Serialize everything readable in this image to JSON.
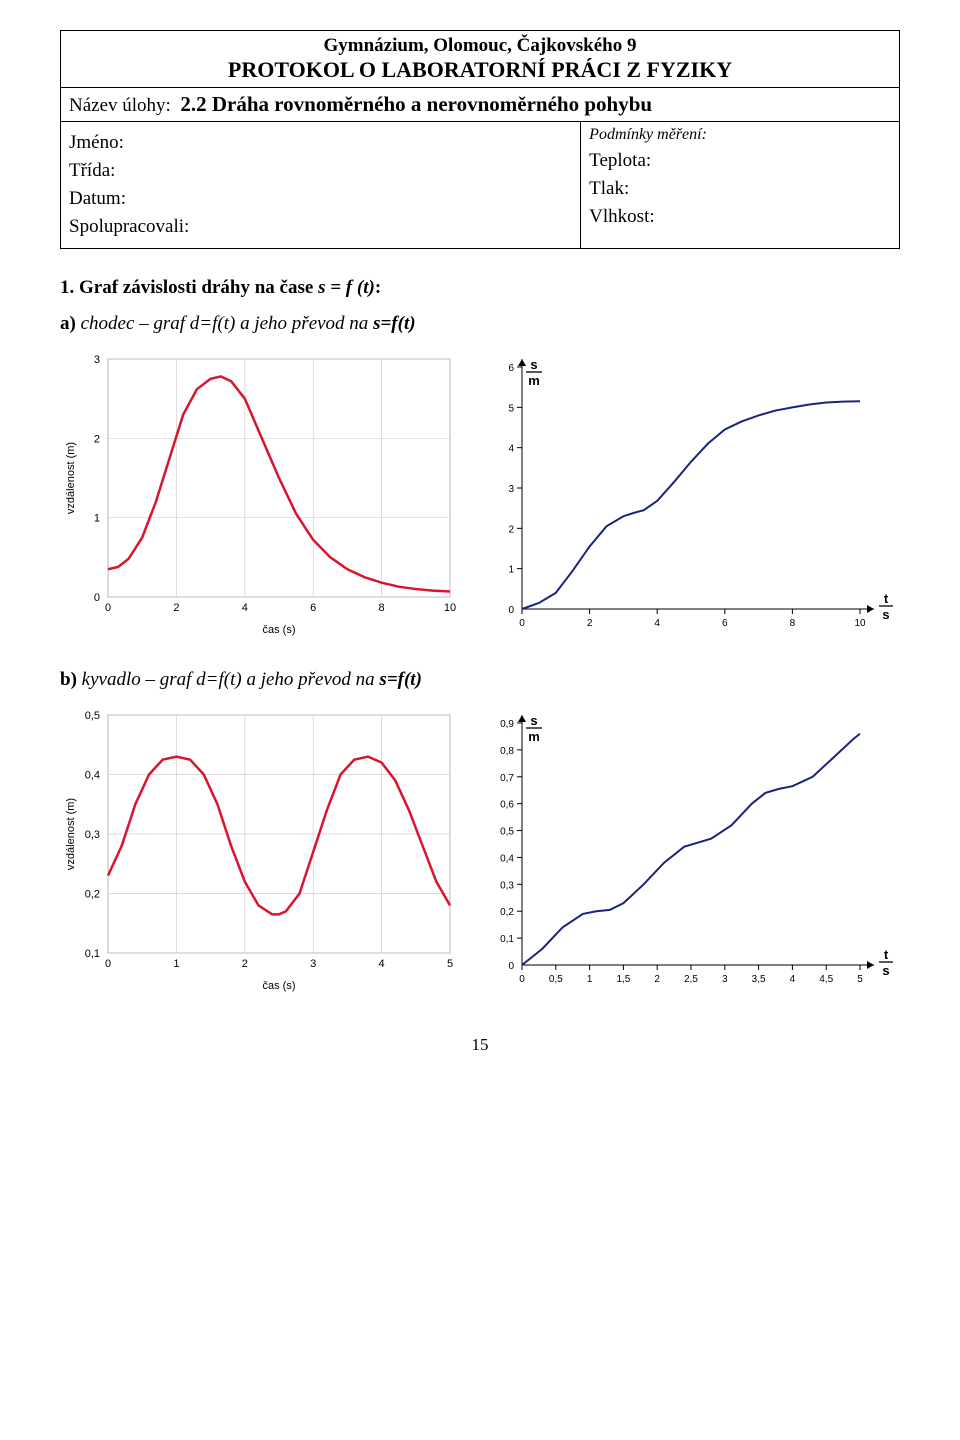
{
  "header": {
    "school": "Gymnázium, Olomouc, Čajkovského 9",
    "protocol": "PROTOKOL O LABORATORNÍ PRÁCI Z FYZIKY",
    "task_label": "Název úlohy:",
    "task_title": "2.2 Dráha rovnoměrného a nerovnoměrného pohybu",
    "left_fields": [
      "Jméno:",
      "Třída:",
      "Datum:",
      "Spolupracovali:"
    ],
    "cond_title": "Podmínky měření:",
    "right_fields": [
      "Teplota:",
      "Tlak:",
      "Vlhkost:"
    ]
  },
  "section1": {
    "num": "1.",
    "title_pre": "Graf závislosti dráhy na čase ",
    "fn": "s = f (t)",
    "title_post": ":"
  },
  "sub_a": {
    "lead": "a)",
    "body_pre": " chodec – graf  d=f(t) a jeho převod na ",
    "var": "s=f(t)"
  },
  "sub_b": {
    "lead": "b)",
    "body_pre": " kyvadlo – graf  d=f(t) a jeho převod na ",
    "var": "s=f(t)"
  },
  "chart_a_left": {
    "type": "line",
    "xlabel": "čas (s)",
    "ylabel": "vzdálenost (m)",
    "xlim": [
      0,
      10
    ],
    "xtick_step": 2,
    "ylim": [
      0,
      3
    ],
    "ytick_step": 1,
    "line_color": "#d8152e",
    "bg": "#ffffff",
    "grid_color": "#d0d0d0",
    "data": [
      [
        0,
        0.35
      ],
      [
        0.3,
        0.38
      ],
      [
        0.6,
        0.48
      ],
      [
        1,
        0.75
      ],
      [
        1.4,
        1.2
      ],
      [
        1.8,
        1.75
      ],
      [
        2.2,
        2.3
      ],
      [
        2.6,
        2.62
      ],
      [
        3,
        2.75
      ],
      [
        3.3,
        2.78
      ],
      [
        3.6,
        2.72
      ],
      [
        4,
        2.5
      ],
      [
        4.5,
        2.0
      ],
      [
        5,
        1.5
      ],
      [
        5.5,
        1.05
      ],
      [
        6,
        0.72
      ],
      [
        6.5,
        0.5
      ],
      [
        7,
        0.35
      ],
      [
        7.5,
        0.25
      ],
      [
        8,
        0.18
      ],
      [
        8.5,
        0.13
      ],
      [
        9,
        0.1
      ],
      [
        9.5,
        0.08
      ],
      [
        10,
        0.07
      ]
    ]
  },
  "chart_a_right": {
    "type": "line",
    "yunit_top": "s",
    "yunit_bot": "m",
    "xunit_top": "t",
    "xunit_bot": "s",
    "xlim": [
      0,
      10
    ],
    "xtick_step": 2,
    "ylim": [
      0,
      6
    ],
    "ytick_step": 1,
    "line_color": "#1a237e",
    "bg": "#ffffff",
    "data": [
      [
        0,
        0
      ],
      [
        0.5,
        0.15
      ],
      [
        1,
        0.4
      ],
      [
        1.5,
        0.95
      ],
      [
        2,
        1.55
      ],
      [
        2.5,
        2.05
      ],
      [
        3,
        2.3
      ],
      [
        3.3,
        2.38
      ],
      [
        3.6,
        2.45
      ],
      [
        4,
        2.68
      ],
      [
        4.5,
        3.15
      ],
      [
        5,
        3.65
      ],
      [
        5.5,
        4.1
      ],
      [
        6,
        4.45
      ],
      [
        6.5,
        4.65
      ],
      [
        7,
        4.8
      ],
      [
        7.5,
        4.92
      ],
      [
        8,
        5.0
      ],
      [
        8.5,
        5.07
      ],
      [
        9,
        5.12
      ],
      [
        9.5,
        5.14
      ],
      [
        10,
        5.15
      ]
    ]
  },
  "chart_b_left": {
    "type": "line",
    "xlabel": "čas (s)",
    "ylabel": "vzdálenost (m)",
    "xlim": [
      0,
      5
    ],
    "xtick_step": 1,
    "ylim": [
      0.1,
      0.5
    ],
    "ytick_step": 0.1,
    "line_color": "#d8152e",
    "bg": "#ffffff",
    "grid_color": "#d0d0d0",
    "data": [
      [
        0,
        0.23
      ],
      [
        0.2,
        0.28
      ],
      [
        0.4,
        0.35
      ],
      [
        0.6,
        0.4
      ],
      [
        0.8,
        0.425
      ],
      [
        1.0,
        0.43
      ],
      [
        1.2,
        0.425
      ],
      [
        1.4,
        0.4
      ],
      [
        1.6,
        0.35
      ],
      [
        1.8,
        0.28
      ],
      [
        2.0,
        0.22
      ],
      [
        2.2,
        0.18
      ],
      [
        2.4,
        0.165
      ],
      [
        2.5,
        0.165
      ],
      [
        2.6,
        0.17
      ],
      [
        2.8,
        0.2
      ],
      [
        3.0,
        0.27
      ],
      [
        3.2,
        0.34
      ],
      [
        3.4,
        0.4
      ],
      [
        3.6,
        0.425
      ],
      [
        3.8,
        0.43
      ],
      [
        4.0,
        0.42
      ],
      [
        4.2,
        0.39
      ],
      [
        4.4,
        0.34
      ],
      [
        4.6,
        0.28
      ],
      [
        4.8,
        0.22
      ],
      [
        5.0,
        0.18
      ]
    ]
  },
  "chart_b_right": {
    "type": "line",
    "yunit_top": "s",
    "yunit_bot": "m",
    "xunit_top": "t",
    "xunit_bot": "s",
    "xlim": [
      0,
      5
    ],
    "xtick_step": 0.5,
    "ylim": [
      0,
      0.9
    ],
    "ytick_step": 0.1,
    "line_color": "#1a237e",
    "bg": "#ffffff",
    "data": [
      [
        0,
        0
      ],
      [
        0.3,
        0.06
      ],
      [
        0.6,
        0.14
      ],
      [
        0.9,
        0.19
      ],
      [
        1.1,
        0.2
      ],
      [
        1.3,
        0.205
      ],
      [
        1.5,
        0.23
      ],
      [
        1.8,
        0.3
      ],
      [
        2.1,
        0.38
      ],
      [
        2.4,
        0.44
      ],
      [
        2.6,
        0.455
      ],
      [
        2.8,
        0.47
      ],
      [
        3.1,
        0.52
      ],
      [
        3.4,
        0.6
      ],
      [
        3.6,
        0.64
      ],
      [
        3.8,
        0.655
      ],
      [
        4.0,
        0.665
      ],
      [
        4.3,
        0.7
      ],
      [
        4.6,
        0.77
      ],
      [
        4.9,
        0.84
      ],
      [
        5.0,
        0.86
      ]
    ]
  },
  "page_number": "15"
}
